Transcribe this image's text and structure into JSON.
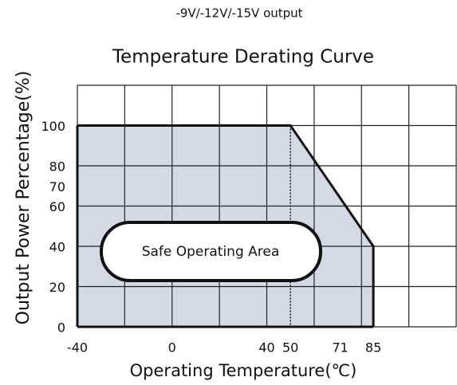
{
  "header": "-9V/-12V/-15V output",
  "chart_data": {
    "type": "area",
    "title": "Temperature Derating Curve",
    "x_label": "Operating Temperature(℃)",
    "y_label": "Output Power Percentage(%)",
    "x": [
      -40,
      50,
      85,
      85
    ],
    "values": [
      100,
      100,
      40,
      0
    ],
    "color": "#d5d9e3",
    "xlim": [
      -40,
      120
    ],
    "ylim": [
      0,
      120
    ],
    "xticks": [
      -40,
      0,
      40,
      50,
      71,
      85
    ],
    "yticks": [
      0,
      20,
      40,
      60,
      70,
      80,
      100
    ],
    "xgrid": [
      -40,
      -20,
      0,
      20,
      40,
      60,
      80,
      100,
      120
    ],
    "ygrid": [
      0,
      20,
      40,
      60,
      80,
      100,
      120
    ],
    "dotted_x": 50,
    "annotation": "Safe Operating Area"
  }
}
